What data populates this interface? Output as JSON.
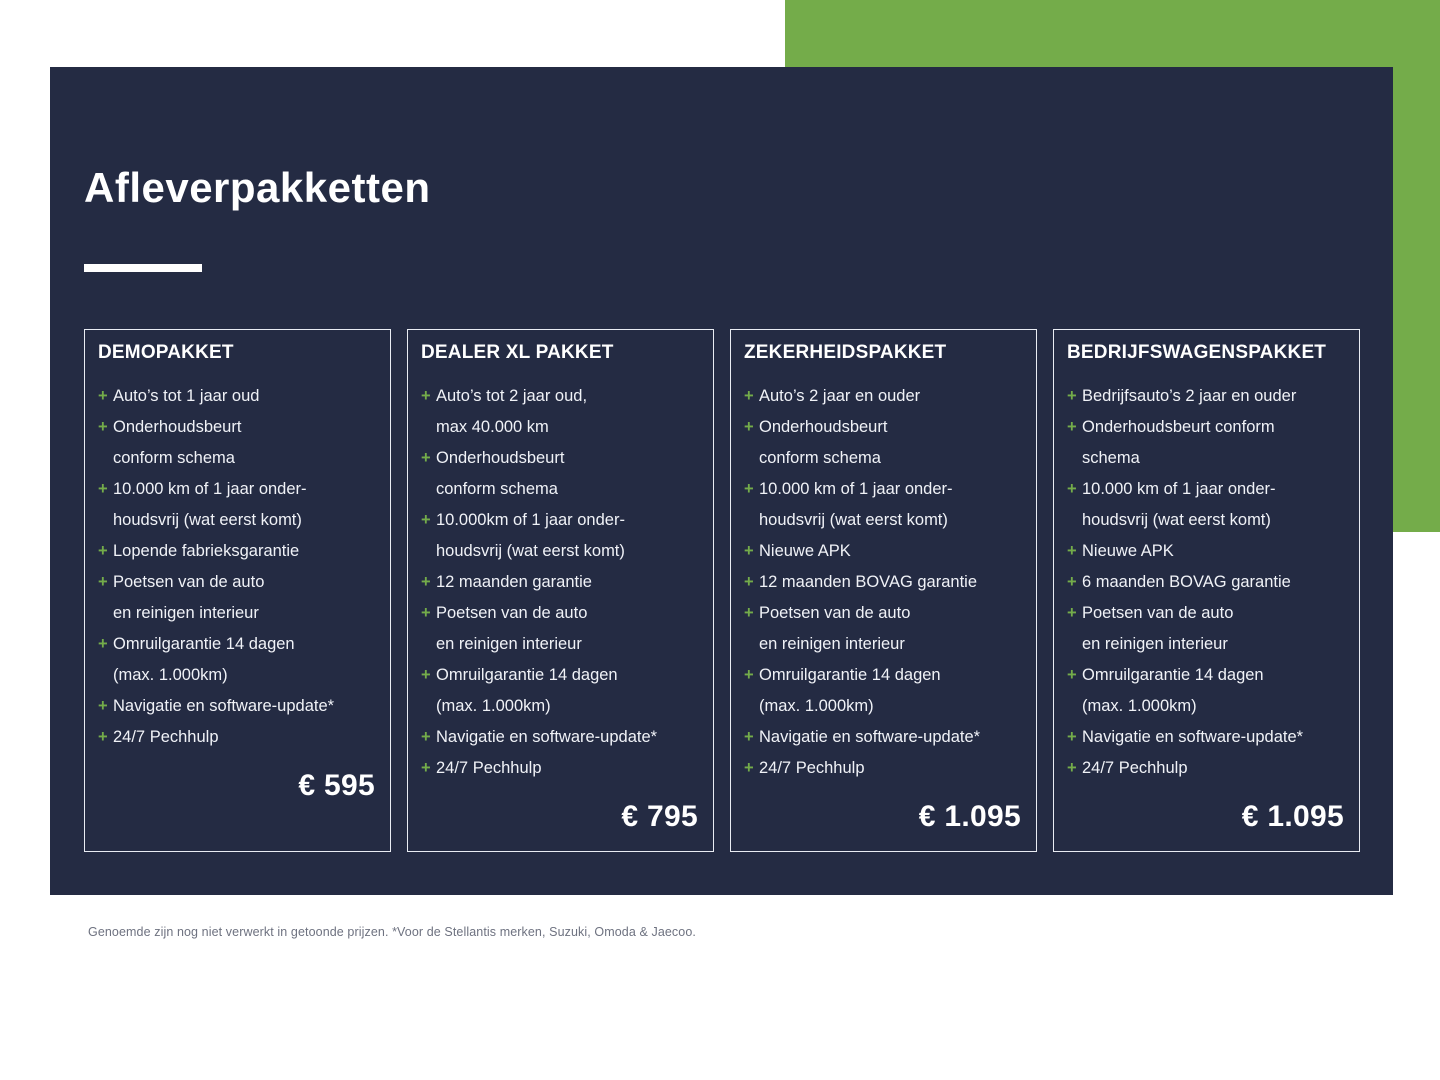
{
  "page": {
    "title": "Afleverpakketten",
    "footnote": "Genoemde zijn nog niet verwerkt in getoonde prijzen. *Voor de Stellantis merken, Suzuki, Omoda & Jaecoo."
  },
  "colors": {
    "panel_bg": "#242b43",
    "accent_green": "#74ac4a",
    "card_border": "#e9ecf3",
    "body_text": "#f0f2f7",
    "footnote_gray": "#6e7280"
  },
  "icons": {
    "list_marker": "plus-icon",
    "list_marker_glyph": "+"
  },
  "packages": [
    {
      "title": "DEMOPAKKET",
      "items": [
        [
          "Auto’s tot 1 jaar oud"
        ],
        [
          "Onderhoudsbeurt",
          "conform schema"
        ],
        [
          "10.000 km of 1 jaar onder-",
          "houdsvrij (wat eerst komt)"
        ],
        [
          "Lopende fabrieksgarantie"
        ],
        [
          "Poetsen van de auto",
          "en reinigen interieur"
        ],
        [
          "Omruilgarantie 14 dagen",
          "(max. 1.000km)"
        ],
        [
          "Navigatie en software-update*"
        ],
        [
          "24/7 Pechhulp"
        ]
      ],
      "price": "€ 595"
    },
    {
      "title": "DEALER XL PAKKET",
      "items": [
        [
          "Auto’s tot 2 jaar oud,",
          "max 40.000 km"
        ],
        [
          "Onderhoudsbeurt",
          "conform schema"
        ],
        [
          "10.000km of 1 jaar onder-",
          "houdsvrij (wat eerst komt)"
        ],
        [
          "12 maanden garantie"
        ],
        [
          "Poetsen van de auto",
          "en reinigen interieur"
        ],
        [
          "Omruilgarantie 14 dagen",
          "(max. 1.000km)"
        ],
        [
          "Navigatie en software-update*"
        ],
        [
          "24/7 Pechhulp"
        ]
      ],
      "price": "€ 795"
    },
    {
      "title": "ZEKERHEIDSPAKKET",
      "items": [
        [
          "Auto’s 2 jaar en ouder"
        ],
        [
          "Onderhoudsbeurt",
          "conform schema"
        ],
        [
          "10.000 km of 1 jaar onder-",
          "houdsvrij (wat eerst komt)"
        ],
        [
          "Nieuwe APK"
        ],
        [
          "12 maanden BOVAG garantie"
        ],
        [
          "Poetsen van de auto",
          "en reinigen interieur"
        ],
        [
          "Omruilgarantie 14 dagen",
          "(max. 1.000km)"
        ],
        [
          "Navigatie en software-update*"
        ],
        [
          "24/7 Pechhulp"
        ]
      ],
      "price": "€ 1.095"
    },
    {
      "title": "BEDRIJFSWAGENSPAKKET",
      "items": [
        [
          "Bedrijfsauto’s 2 jaar en ouder"
        ],
        [
          "Onderhoudsbeurt conform",
          "schema"
        ],
        [
          "10.000 km of 1 jaar onder-",
          "houdsvrij (wat eerst komt)"
        ],
        [
          "Nieuwe APK"
        ],
        [
          "6 maanden BOVAG garantie"
        ],
        [
          "Poetsen van de auto",
          "en reinigen interieur"
        ],
        [
          "Omruilgarantie 14 dagen",
          "(max. 1.000km)"
        ],
        [
          "Navigatie en software-update*"
        ],
        [
          "24/7 Pechhulp"
        ]
      ],
      "price": "€ 1.095"
    }
  ]
}
